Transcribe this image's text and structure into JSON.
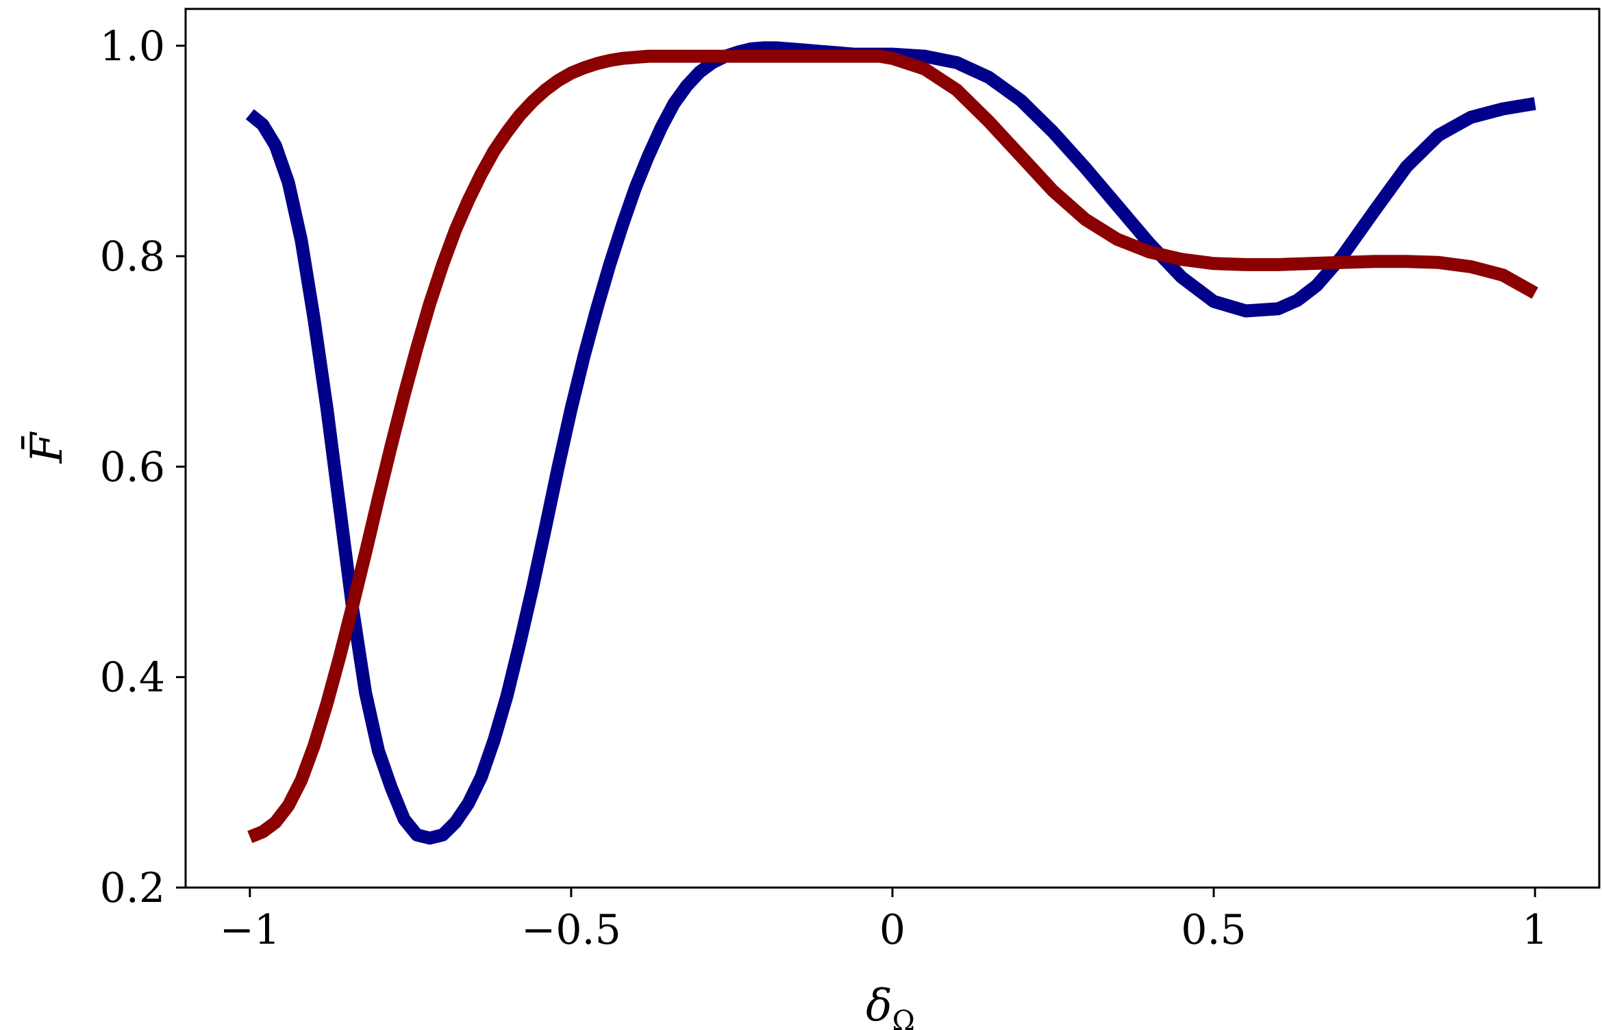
{
  "chart_data": {
    "type": "line",
    "xlabel": "δ",
    "xlabel_subscript": "Ω",
    "ylabel": "F̄",
    "xlim": [
      -1.1,
      1.1
    ],
    "ylim": [
      0.2,
      1.035
    ],
    "xticks": [
      -1,
      -0.5,
      0,
      0.5,
      1
    ],
    "xtick_labels": [
      "−1",
      "−0.5",
      "0",
      "0.5",
      "1"
    ],
    "yticks": [
      0.2,
      0.4,
      0.6,
      0.8,
      1.0
    ],
    "ytick_labels": [
      "0.2",
      "0.4",
      "0.6",
      "0.8",
      "1.0"
    ],
    "grid": false,
    "series": [
      {
        "color": "#00008b",
        "x": [
          -1.0,
          -0.98,
          -0.96,
          -0.94,
          -0.92,
          -0.9,
          -0.88,
          -0.86,
          -0.84,
          -0.82,
          -0.8,
          -0.78,
          -0.76,
          -0.74,
          -0.72,
          -0.7,
          -0.68,
          -0.66,
          -0.64,
          -0.62,
          -0.6,
          -0.58,
          -0.56,
          -0.54,
          -0.52,
          -0.5,
          -0.48,
          -0.46,
          -0.44,
          -0.42,
          -0.4,
          -0.38,
          -0.36,
          -0.34,
          -0.32,
          -0.3,
          -0.28,
          -0.26,
          -0.24,
          -0.22,
          -0.2,
          -0.18,
          -0.16,
          -0.14,
          -0.12,
          -0.1,
          -0.08,
          -0.06,
          -0.04,
          -0.02,
          0.0,
          0.05,
          0.1,
          0.15,
          0.2,
          0.25,
          0.3,
          0.35,
          0.4,
          0.45,
          0.5,
          0.55,
          0.6,
          0.63,
          0.66,
          0.7,
          0.75,
          0.8,
          0.85,
          0.9,
          0.95,
          0.97,
          1.0
        ],
        "y": [
          0.935,
          0.925,
          0.905,
          0.87,
          0.815,
          0.74,
          0.655,
          0.56,
          0.465,
          0.385,
          0.33,
          0.295,
          0.265,
          0.25,
          0.247,
          0.25,
          0.262,
          0.28,
          0.305,
          0.34,
          0.382,
          0.432,
          0.485,
          0.542,
          0.6,
          0.655,
          0.705,
          0.75,
          0.792,
          0.83,
          0.865,
          0.895,
          0.922,
          0.945,
          0.962,
          0.975,
          0.984,
          0.99,
          0.994,
          0.997,
          0.998,
          0.998,
          0.997,
          0.996,
          0.995,
          0.994,
          0.993,
          0.992,
          0.992,
          0.992,
          0.992,
          0.99,
          0.984,
          0.97,
          0.948,
          0.918,
          0.884,
          0.848,
          0.812,
          0.78,
          0.757,
          0.748,
          0.75,
          0.758,
          0.772,
          0.8,
          0.843,
          0.885,
          0.915,
          0.932,
          0.94,
          0.942,
          0.945
        ]
      },
      {
        "color": "#8b0000",
        "x": [
          -1.0,
          -0.98,
          -0.96,
          -0.94,
          -0.92,
          -0.9,
          -0.88,
          -0.86,
          -0.84,
          -0.82,
          -0.8,
          -0.78,
          -0.76,
          -0.74,
          -0.72,
          -0.7,
          -0.68,
          -0.66,
          -0.64,
          -0.62,
          -0.6,
          -0.58,
          -0.56,
          -0.54,
          -0.52,
          -0.5,
          -0.48,
          -0.46,
          -0.44,
          -0.42,
          -0.4,
          -0.38,
          -0.36,
          -0.34,
          -0.32,
          -0.3,
          -0.28,
          -0.26,
          -0.24,
          -0.22,
          -0.2,
          -0.18,
          -0.16,
          -0.14,
          -0.12,
          -0.1,
          -0.08,
          -0.06,
          -0.04,
          -0.02,
          0.0,
          0.05,
          0.1,
          0.15,
          0.2,
          0.25,
          0.3,
          0.35,
          0.4,
          0.45,
          0.5,
          0.55,
          0.6,
          0.65,
          0.7,
          0.75,
          0.8,
          0.85,
          0.9,
          0.95,
          1.0
        ],
        "y": [
          0.248,
          0.253,
          0.262,
          0.278,
          0.302,
          0.335,
          0.375,
          0.42,
          0.468,
          0.518,
          0.57,
          0.62,
          0.668,
          0.713,
          0.755,
          0.792,
          0.825,
          0.853,
          0.878,
          0.9,
          0.918,
          0.934,
          0.947,
          0.958,
          0.967,
          0.974,
          0.979,
          0.983,
          0.986,
          0.988,
          0.989,
          0.99,
          0.99,
          0.99,
          0.99,
          0.99,
          0.99,
          0.99,
          0.99,
          0.99,
          0.99,
          0.99,
          0.99,
          0.99,
          0.99,
          0.99,
          0.99,
          0.99,
          0.99,
          0.99,
          0.988,
          0.978,
          0.958,
          0.928,
          0.895,
          0.862,
          0.835,
          0.816,
          0.804,
          0.797,
          0.793,
          0.792,
          0.792,
          0.793,
          0.794,
          0.795,
          0.795,
          0.794,
          0.79,
          0.782,
          0.765
        ]
      }
    ]
  }
}
